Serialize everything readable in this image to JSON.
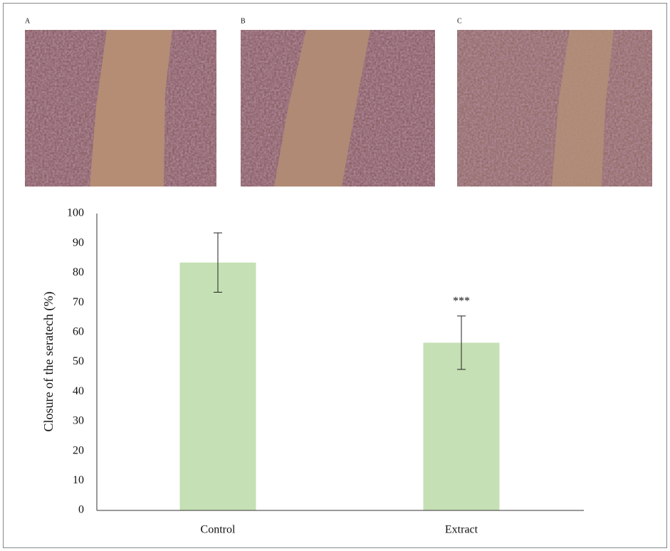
{
  "panels": [
    "A",
    "B",
    "C"
  ],
  "chart_data": {
    "type": "bar",
    "y_label": "Closure of the seratech (%)",
    "categories": [
      "Control",
      "Extract"
    ],
    "values": [
      83.5,
      56.5
    ],
    "errors": [
      10,
      9
    ],
    "value_annotations": [
      null,
      "***"
    ],
    "color": "#c5e0b4",
    "ylim": [
      0,
      100
    ],
    "yticks": [
      0,
      10,
      20,
      30,
      40,
      50,
      60,
      70,
      80,
      90,
      100
    ],
    "grid": false
  }
}
